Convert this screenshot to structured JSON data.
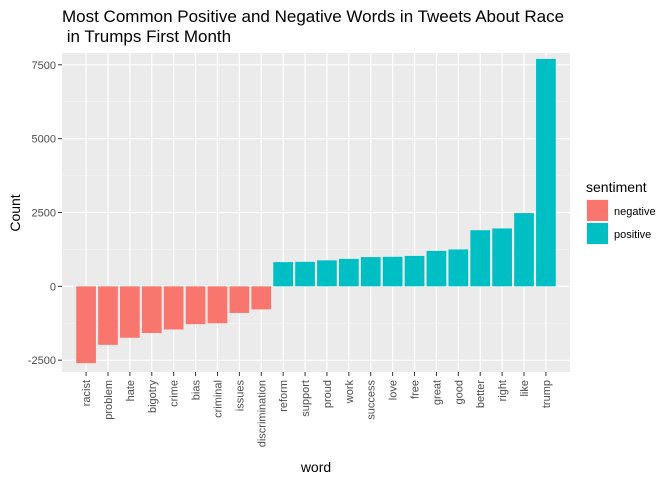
{
  "chart_data": {
    "type": "bar",
    "title": "Most Common Positive and Negative Words in Tweets About Race\n in Trumps First Month",
    "xlabel": "word",
    "ylabel": "Count",
    "ylim": [
      -2900,
      7900
    ],
    "yticks": [
      -2500,
      0,
      2500,
      5000,
      7500
    ],
    "ytick_labels": [
      "-2500",
      "0",
      "2500",
      "5000",
      "7500"
    ],
    "grid": true,
    "legend": {
      "title": "sentiment",
      "placement": "right",
      "entries": [
        {
          "label": "negative",
          "color": "#F8766D"
        },
        {
          "label": "positive",
          "color": "#00BFC4"
        }
      ]
    },
    "categories": [
      "racist",
      "problem",
      "hate",
      "bigotry",
      "crime",
      "bias",
      "criminal",
      "issues",
      "discrimination",
      "reform",
      "support",
      "proud",
      "work",
      "success",
      "love",
      "free",
      "great",
      "good",
      "better",
      "right",
      "like",
      "trump"
    ],
    "values": [
      -2600,
      -1980,
      -1740,
      -1580,
      -1460,
      -1280,
      -1250,
      -900,
      -780,
      820,
      830,
      880,
      930,
      990,
      1000,
      1030,
      1200,
      1250,
      1900,
      1960,
      2480,
      7700
    ],
    "sentiment": [
      "negative",
      "negative",
      "negative",
      "negative",
      "negative",
      "negative",
      "negative",
      "negative",
      "negative",
      "positive",
      "positive",
      "positive",
      "positive",
      "positive",
      "positive",
      "positive",
      "positive",
      "positive",
      "positive",
      "positive",
      "positive",
      "positive"
    ]
  }
}
